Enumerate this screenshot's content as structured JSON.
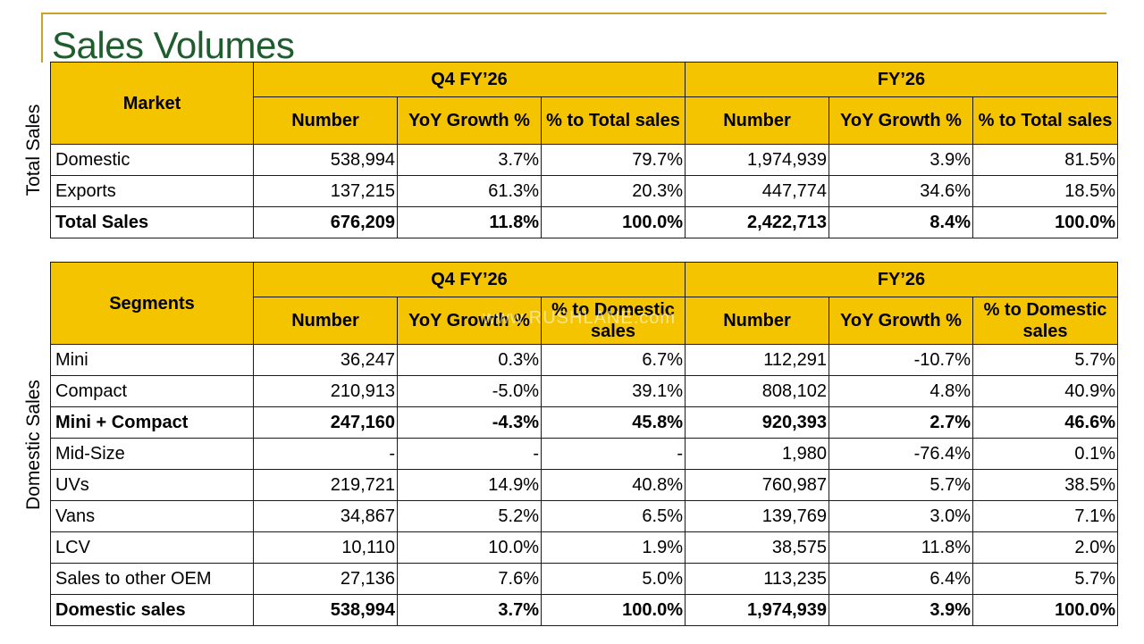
{
  "title": "Sales Volumes",
  "watermark": "www.RUSHLANE.com",
  "side_labels": {
    "total": "Total Sales",
    "domestic": "Domestic Sales"
  },
  "total_table": {
    "first_header": "Market",
    "group_q4": "Q4 FY’26",
    "group_fy": "FY’26",
    "col_number": "Number",
    "col_yoy": "YoY Growth %",
    "col_share": "% to Total sales",
    "rows": [
      {
        "label": "Domestic",
        "q4_number": "538,994",
        "q4_yoy": "3.7%",
        "q4_share": "79.7%",
        "fy_number": "1,974,939",
        "fy_yoy": "3.9%",
        "fy_share": "81.5%",
        "bold": false
      },
      {
        "label": "Exports",
        "q4_number": "137,215",
        "q4_yoy": "61.3%",
        "q4_share": "20.3%",
        "fy_number": "447,774",
        "fy_yoy": "34.6%",
        "fy_share": "18.5%",
        "bold": false
      },
      {
        "label": "Total Sales",
        "q4_number": "676,209",
        "q4_yoy": "11.8%",
        "q4_share": "100.0%",
        "fy_number": "2,422,713",
        "fy_yoy": "8.4%",
        "fy_share": "100.0%",
        "bold": true
      }
    ]
  },
  "domestic_table": {
    "first_header": "Segments",
    "group_q4": "Q4 FY’26",
    "group_fy": "FY’26",
    "col_number": "Number",
    "col_yoy": "YoY Growth %",
    "col_share": "% to Domestic sales",
    "rows": [
      {
        "label": "Mini",
        "q4_number": "36,247",
        "q4_yoy": "0.3%",
        "q4_share": "6.7%",
        "fy_number": "112,291",
        "fy_yoy": "-10.7%",
        "fy_share": "5.7%",
        "bold": false
      },
      {
        "label": "Compact",
        "q4_number": "210,913",
        "q4_yoy": "-5.0%",
        "q4_share": "39.1%",
        "fy_number": "808,102",
        "fy_yoy": "4.8%",
        "fy_share": "40.9%",
        "bold": false
      },
      {
        "label": "Mini + Compact",
        "q4_number": "247,160",
        "q4_yoy": "-4.3%",
        "q4_share": "45.8%",
        "fy_number": "920,393",
        "fy_yoy": "2.7%",
        "fy_share": "46.6%",
        "bold": true
      },
      {
        "label": "Mid-Size",
        "q4_number": "-",
        "q4_yoy": "-",
        "q4_share": "-",
        "fy_number": "1,980",
        "fy_yoy": "-76.4%",
        "fy_share": "0.1%",
        "bold": false
      },
      {
        "label": "UVs",
        "q4_number": "219,721",
        "q4_yoy": "14.9%",
        "q4_share": "40.8%",
        "fy_number": "760,987",
        "fy_yoy": "5.7%",
        "fy_share": "38.5%",
        "bold": false
      },
      {
        "label": "Vans",
        "q4_number": "34,867",
        "q4_yoy": "5.2%",
        "q4_share": "6.5%",
        "fy_number": "139,769",
        "fy_yoy": "3.0%",
        "fy_share": "7.1%",
        "bold": false
      },
      {
        "label": "LCV",
        "q4_number": "10,110",
        "q4_yoy": "10.0%",
        "q4_share": "1.9%",
        "fy_number": "38,575",
        "fy_yoy": "11.8%",
        "fy_share": "2.0%",
        "bold": false
      },
      {
        "label": "Sales to other OEM",
        "q4_number": "27,136",
        "q4_yoy": "7.6%",
        "q4_share": "5.0%",
        "fy_number": "113,235",
        "fy_yoy": "6.4%",
        "fy_share": "5.7%",
        "bold": false
      },
      {
        "label": "Domestic sales",
        "q4_number": "538,994",
        "q4_yoy": "3.7%",
        "q4_share": "100.0%",
        "fy_number": "1,974,939",
        "fy_yoy": "3.9%",
        "fy_share": "100.0%",
        "bold": true
      }
    ]
  },
  "colors": {
    "title_green": "#1f5c2e",
    "header_yellow": "#f5c400",
    "accent_rule": "#c9a227"
  }
}
